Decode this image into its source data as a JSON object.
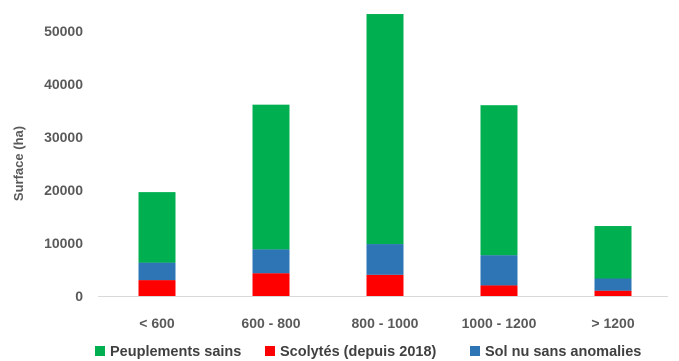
{
  "chart_data": {
    "type": "bar",
    "stacked": true,
    "categories": [
      "< 600",
      "600 - 800",
      "800 - 1000",
      "1000 - 1200",
      "> 1200"
    ],
    "series": [
      {
        "name": "Scolytés (depuis 2018)",
        "color": "#ff0000",
        "values": [
          3000,
          4300,
          4000,
          2000,
          1000
        ]
      },
      {
        "name": "Sol nu sans anomalies",
        "color": "#2e75b6",
        "values": [
          3300,
          4500,
          5800,
          5700,
          2300
        ]
      },
      {
        "name": "Peuplements sains",
        "color": "#00b050",
        "values": [
          13300,
          27300,
          43400,
          28300,
          9900
        ]
      }
    ],
    "legend_order": [
      "Peuplements sains",
      "Scolytés (depuis 2018)",
      "Sol nu sans anomalies"
    ],
    "ylabel": "Surface (ha)",
    "xlabel": "",
    "title": "",
    "ylim": [
      0,
      50000
    ],
    "yticks": [
      0,
      10000,
      20000,
      30000,
      40000,
      50000
    ],
    "grid": false,
    "legend_position": "bottom"
  }
}
